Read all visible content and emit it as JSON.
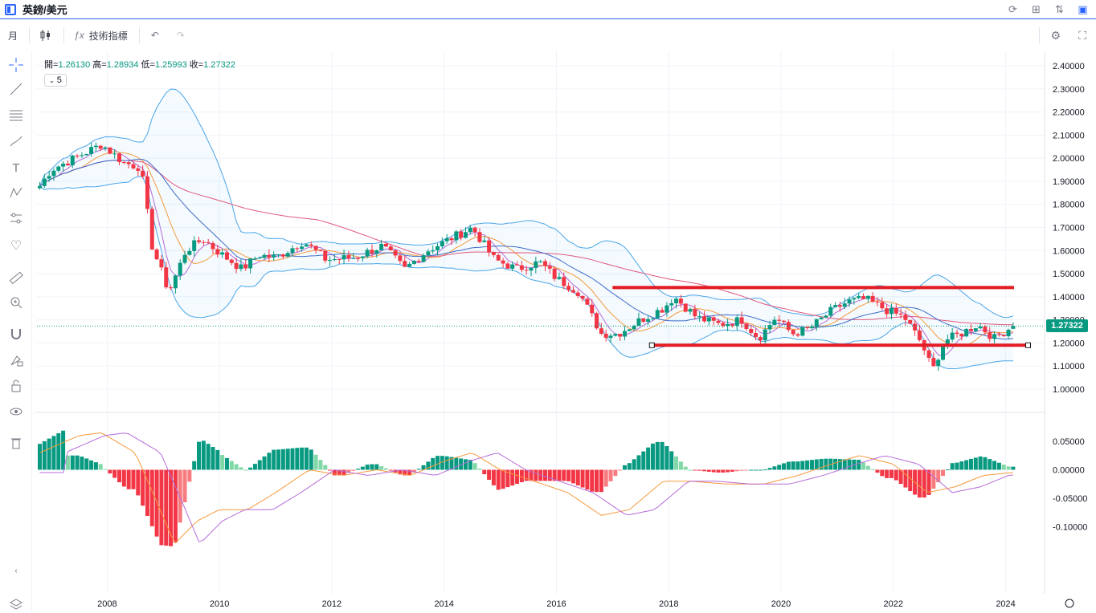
{
  "window": {
    "title": "英鎊/美元"
  },
  "toolbar": {
    "interval": "月",
    "indicators_label": "技術指標",
    "fx_icon": "ƒx"
  },
  "legend": {
    "open_label": "開=",
    "open": "1.26130",
    "high_label": "高=",
    "high": "1.28934",
    "low_label": "低=",
    "low": "1.25993",
    "close_label": "收=",
    "close": "1.27322",
    "collapse_icon": "chevron-down-icon",
    "indicator_count": "5"
  },
  "price_axis": {
    "ticks": [
      "2.40000",
      "2.30000",
      "2.20000",
      "2.10000",
      "2.00000",
      "1.90000",
      "1.80000",
      "1.70000",
      "1.60000",
      "1.50000",
      "1.40000",
      "1.30000",
      "1.20000",
      "1.10000",
      "1.00000"
    ],
    "current_price": "1.27322"
  },
  "macd_axis": {
    "ticks": [
      "0.05000",
      "0.00000",
      "-0.05000",
      "-0.10000"
    ]
  },
  "time_axis": {
    "ticks": [
      "2008",
      "2010",
      "2012",
      "2014",
      "2016",
      "2018",
      "2020",
      "2022",
      "2024"
    ]
  },
  "colors": {
    "up": "#089981",
    "down": "#f23645",
    "accent": "#2962ff",
    "bollinger": "#4aa5e8",
    "ma_short": "#b66cd9",
    "ma_mid": "#f59a3b",
    "ma_long": "#e0577d",
    "drawing": "#e31b23"
  },
  "chart_data": {
    "type": "candlestick",
    "symbol": "英鎊/美元",
    "interval": "月",
    "ylim": [
      0.97,
      2.45
    ],
    "xlim": [
      2006.75,
      2024.55
    ],
    "yearly_close": [
      [
        2006.8,
        1.88
      ],
      [
        2007.0,
        1.95
      ],
      [
        2007.5,
        2.01
      ],
      [
        2007.9,
        2.06
      ],
      [
        2008.3,
        1.98
      ],
      [
        2008.6,
        1.96
      ],
      [
        2008.8,
        1.62
      ],
      [
        2009.1,
        1.42
      ],
      [
        2009.4,
        1.6
      ],
      [
        2009.7,
        1.65
      ],
      [
        2010.0,
        1.59
      ],
      [
        2010.4,
        1.52
      ],
      [
        2010.7,
        1.58
      ],
      [
        2011.0,
        1.57
      ],
      [
        2011.5,
        1.64
      ],
      [
        2011.9,
        1.56
      ],
      [
        2012.4,
        1.57
      ],
      [
        2012.9,
        1.62
      ],
      [
        2013.3,
        1.52
      ],
      [
        2013.7,
        1.6
      ],
      [
        2014.1,
        1.65
      ],
      [
        2014.5,
        1.7
      ],
      [
        2014.9,
        1.56
      ],
      [
        2015.3,
        1.52
      ],
      [
        2015.7,
        1.55
      ],
      [
        2016.0,
        1.48
      ],
      [
        2016.4,
        1.42
      ],
      [
        2016.8,
        1.24
      ],
      [
        2017.1,
        1.24
      ],
      [
        2017.5,
        1.3
      ],
      [
        2017.9,
        1.35
      ],
      [
        2018.1,
        1.4
      ],
      [
        2018.5,
        1.31
      ],
      [
        2018.9,
        1.28
      ],
      [
        2019.3,
        1.3
      ],
      [
        2019.6,
        1.22
      ],
      [
        2019.9,
        1.31
      ],
      [
        2020.2,
        1.24
      ],
      [
        2020.5,
        1.26
      ],
      [
        2020.9,
        1.34
      ],
      [
        2021.2,
        1.38
      ],
      [
        2021.5,
        1.39
      ],
      [
        2021.9,
        1.34
      ],
      [
        2022.2,
        1.31
      ],
      [
        2022.5,
        1.2
      ],
      [
        2022.7,
        1.08
      ],
      [
        2022.9,
        1.21
      ],
      [
        2023.2,
        1.24
      ],
      [
        2023.5,
        1.28
      ],
      [
        2023.8,
        1.22
      ],
      [
        2024.1,
        1.27
      ],
      [
        2024.2,
        1.27322
      ]
    ],
    "last_bar": {
      "open": 1.2613,
      "high": 1.28934,
      "low": 1.25993,
      "close": 1.27322
    },
    "drawings": [
      {
        "type": "horizontal_line",
        "price": 1.44,
        "x_start": 2017.0,
        "x_end": 2024.15
      },
      {
        "type": "horizontal_line",
        "price": 1.19,
        "x_start": 2017.7,
        "x_end": 2024.4
      }
    ],
    "macd": {
      "ylim": [
        -0.14,
        0.08
      ],
      "points": [
        [
          2006.8,
          0.03
        ],
        [
          2007.5,
          0.06
        ],
        [
          2007.9,
          0.065
        ],
        [
          2008.5,
          0.03
        ],
        [
          2008.9,
          -0.06
        ],
        [
          2009.2,
          -0.13
        ],
        [
          2009.6,
          -0.09
        ],
        [
          2010.0,
          -0.07
        ],
        [
          2010.5,
          -0.07
        ],
        [
          2011.0,
          -0.04
        ],
        [
          2011.6,
          0.0
        ],
        [
          2012.2,
          -0.01
        ],
        [
          2012.8,
          0.0
        ],
        [
          2013.4,
          -0.01
        ],
        [
          2014.0,
          0.015
        ],
        [
          2014.5,
          0.03
        ],
        [
          2015.0,
          0.0
        ],
        [
          2015.6,
          -0.02
        ],
        [
          2016.2,
          -0.04
        ],
        [
          2016.8,
          -0.08
        ],
        [
          2017.3,
          -0.07
        ],
        [
          2017.9,
          -0.02
        ],
        [
          2018.4,
          -0.02
        ],
        [
          2019.0,
          -0.025
        ],
        [
          2019.7,
          -0.025
        ],
        [
          2020.3,
          -0.01
        ],
        [
          2020.9,
          0.01
        ],
        [
          2021.4,
          0.025
        ],
        [
          2022.0,
          0.01
        ],
        [
          2022.6,
          -0.04
        ],
        [
          2023.1,
          -0.03
        ],
        [
          2023.6,
          -0.01
        ],
        [
          2024.1,
          -0.005
        ]
      ]
    }
  }
}
